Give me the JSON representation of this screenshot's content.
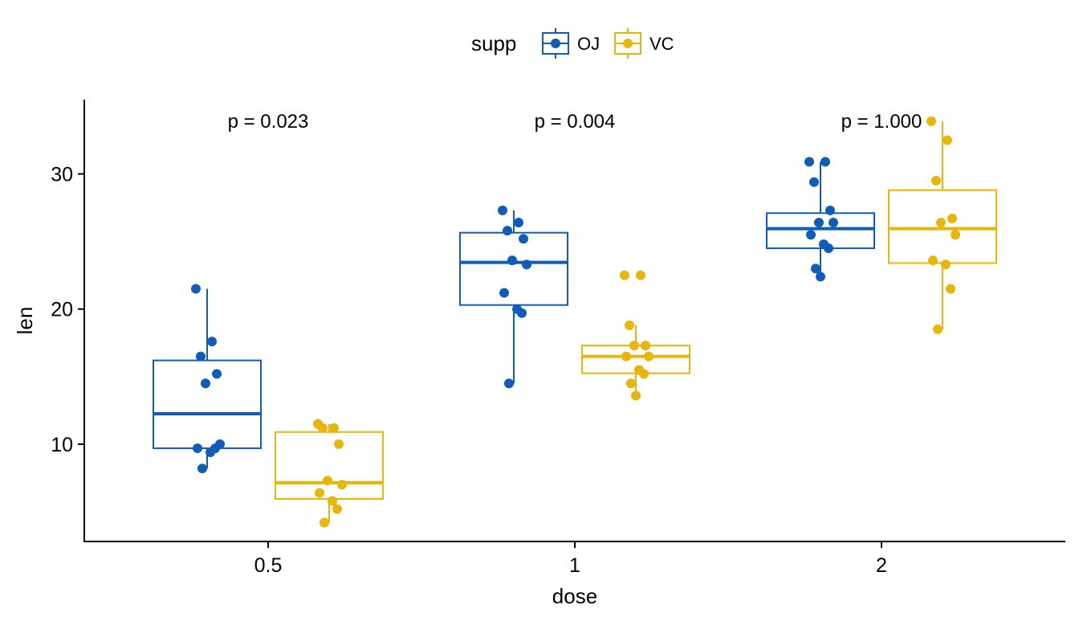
{
  "chart_data": {
    "type": "boxplot",
    "xlabel": "dose",
    "ylabel": "len",
    "categories": [
      "0.5",
      "1",
      "2"
    ],
    "y_ticks": [
      10,
      20,
      30
    ],
    "ylim": [
      2.8,
      35.5
    ],
    "grid": false,
    "legend": {
      "position": "top",
      "title": "supp",
      "entries": [
        {
          "label": "OJ",
          "color": "#0F5DB8"
        },
        {
          "label": "VC",
          "color": "#E8B50B"
        }
      ]
    },
    "annotations": [
      "p = 0.023",
      "p = 0.004",
      "p = 1.000"
    ],
    "series": [
      {
        "name": "OJ",
        "color": "#0F5DB8",
        "boxes": [
          {
            "category": "0.5",
            "min": 8.2,
            "q1": 9.7,
            "median": 12.25,
            "q3": 16.2,
            "max": 21.5,
            "points": [
              21.5,
              17.6,
              16.5,
              15.2,
              14.5,
              10.0,
              9.7,
              9.4,
              9.7,
              8.2
            ]
          },
          {
            "category": "1",
            "min": 14.5,
            "q1": 20.3,
            "median": 23.45,
            "q3": 25.65,
            "max": 27.3,
            "points": [
              27.3,
              26.4,
              25.8,
              25.2,
              23.6,
              23.3,
              21.2,
              20.0,
              19.7,
              14.5
            ]
          },
          {
            "category": "2",
            "min": 22.4,
            "q1": 24.5,
            "median": 25.95,
            "q3": 27.1,
            "max": 30.9,
            "points": [
              30.9,
              30.9,
              29.4,
              27.3,
              26.4,
              26.4,
              25.5,
              24.8,
              24.5,
              23.0,
              22.4
            ]
          }
        ]
      },
      {
        "name": "VC",
        "color": "#E8B50B",
        "boxes": [
          {
            "category": "0.5",
            "min": 4.2,
            "q1": 5.95,
            "median": 7.15,
            "q3": 10.9,
            "max": 11.5,
            "points": [
              11.5,
              11.2,
              11.2,
              10.0,
              7.3,
              7.0,
              6.4,
              5.8,
              5.2,
              4.2
            ]
          },
          {
            "category": "1",
            "min": 13.6,
            "q1": 15.25,
            "median": 16.5,
            "q3": 17.3,
            "max": 18.8,
            "points": [
              22.5,
              22.5,
              18.8,
              17.3,
              17.3,
              16.5,
              16.5,
              15.5,
              15.2,
              14.5,
              13.6
            ]
          },
          {
            "category": "2",
            "min": 18.5,
            "q1": 23.4,
            "median": 25.95,
            "q3": 28.8,
            "max": 33.9,
            "points": [
              33.9,
              32.5,
              29.5,
              26.7,
              26.4,
              25.5,
              23.6,
              23.3,
              21.5,
              18.5
            ]
          }
        ]
      }
    ]
  }
}
